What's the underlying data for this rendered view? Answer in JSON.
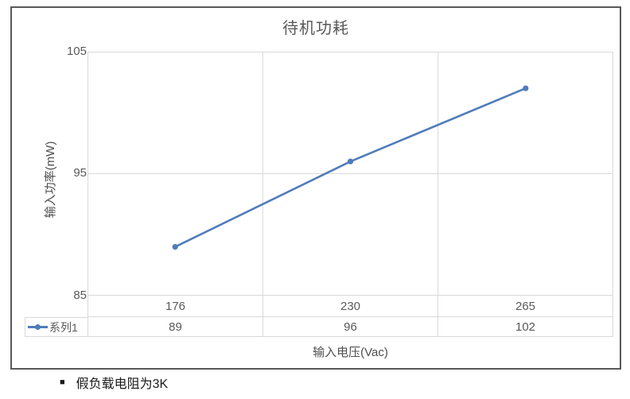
{
  "chart_data": {
    "type": "line",
    "title": "待机功耗",
    "xlabel": "输入电压(Vac)",
    "ylabel": "输入功率(mW)",
    "categories": [
      "176",
      "230",
      "265"
    ],
    "series": [
      {
        "name": "系列1",
        "values": [
          89,
          96,
          102
        ]
      }
    ],
    "ylim": [
      85,
      105
    ],
    "yticks": [
      105,
      95,
      85
    ],
    "grid": true,
    "legend_position": "data-table-left",
    "data_table_shown": true,
    "line_color": "#4f7cba",
    "marker": "circle"
  },
  "colors": {
    "line": "#4f7cba",
    "grid": "#d9d9d9",
    "text": "#595959",
    "frame_border": "#595959",
    "footnote_text": "#1a1a1a"
  },
  "footnote": {
    "bullet": "■",
    "text": "假负载电阻为3K"
  }
}
